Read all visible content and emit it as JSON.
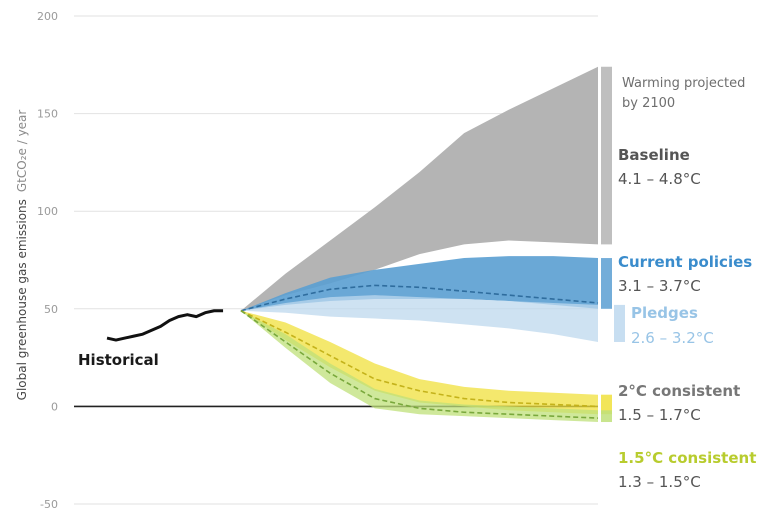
{
  "chart_data": {
    "type": "area",
    "title": "",
    "xlabel": "",
    "ylabel": "Global greenhouse gas emissions",
    "ylabel_unit": "GtCO₂e / year",
    "ylim": [
      -50,
      200
    ],
    "yticks": [
      -50,
      0,
      50,
      100,
      150,
      200
    ],
    "grid": true,
    "x": [
      2000,
      2005,
      2010,
      2015,
      2020,
      2030,
      2040,
      2050,
      2060,
      2070,
      2080,
      2090,
      2100
    ],
    "annotation": "Warming projected by 2100",
    "historical": {
      "name": "Historical",
      "x": [
        1990,
        1992,
        1994,
        1996,
        1998,
        2000,
        2002,
        2004,
        2006,
        2008,
        2010,
        2012,
        2014,
        2016
      ],
      "values": [
        35,
        34,
        35,
        36,
        37,
        39,
        41,
        44,
        46,
        47,
        46,
        48,
        49,
        49
      ]
    },
    "series": [
      {
        "name": "Baseline",
        "range_label": "4.1 – 4.8°C",
        "color": "#b4b4b4",
        "label_color": "#555555",
        "upper": [
          null,
          null,
          null,
          null,
          49,
          68,
          85,
          102,
          120,
          140,
          152,
          163,
          174
        ],
        "lower": [
          null,
          null,
          null,
          null,
          49,
          57,
          63,
          70,
          78,
          83,
          85,
          84,
          83
        ]
      },
      {
        "name": "Current policies",
        "range_label": "3.1 – 3.7°C",
        "color": "#5a9fd2",
        "label_color": "#3a8ccc",
        "upper": [
          null,
          null,
          null,
          null,
          49,
          58,
          66,
          70,
          73,
          76,
          77,
          77,
          76
        ],
        "lower": [
          null,
          null,
          null,
          null,
          49,
          52,
          54,
          55,
          55,
          55,
          54,
          52,
          50
        ],
        "median": [
          null,
          null,
          null,
          null,
          49,
          55,
          60,
          62,
          61,
          59,
          57,
          55,
          53
        ]
      },
      {
        "name": "Pledges",
        "range_label": "2.6 – 3.2°C",
        "color": "#bdd8ee",
        "label_color": "#98c4e6",
        "upper": [
          null,
          null,
          null,
          null,
          49,
          53,
          56,
          57,
          56,
          55,
          54,
          53,
          52
        ],
        "lower": [
          null,
          null,
          null,
          null,
          49,
          48,
          46,
          45,
          44,
          42,
          40,
          37,
          33
        ]
      },
      {
        "name": "2°C consistent",
        "range_label": "1.5 – 1.7°C",
        "color": "#f0e03c",
        "label_color": "#777777",
        "upper": [
          null,
          null,
          null,
          null,
          49,
          43,
          33,
          22,
          14,
          10,
          8,
          7,
          6
        ],
        "lower": [
          null,
          null,
          null,
          null,
          49,
          34,
          20,
          8,
          2,
          0,
          -2,
          -3,
          -4
        ],
        "median": [
          null,
          null,
          null,
          null,
          49,
          38,
          26,
          14,
          8,
          4,
          2,
          1,
          0
        ]
      },
      {
        "name": "1.5°C consistent",
        "range_label": "1.3 – 1.5°C",
        "color": "#bfe07a",
        "label_color": "#b8cc2e",
        "upper": [
          null,
          null,
          null,
          null,
          49,
          37,
          22,
          9,
          3,
          1,
          0,
          -1,
          -2
        ],
        "lower": [
          null,
          null,
          null,
          null,
          49,
          30,
          12,
          -1,
          -4,
          -5,
          -6,
          -7,
          -8
        ],
        "median": [
          null,
          null,
          null,
          null,
          49,
          33,
          17,
          4,
          -1,
          -3,
          -4,
          -5,
          -6
        ]
      }
    ]
  }
}
